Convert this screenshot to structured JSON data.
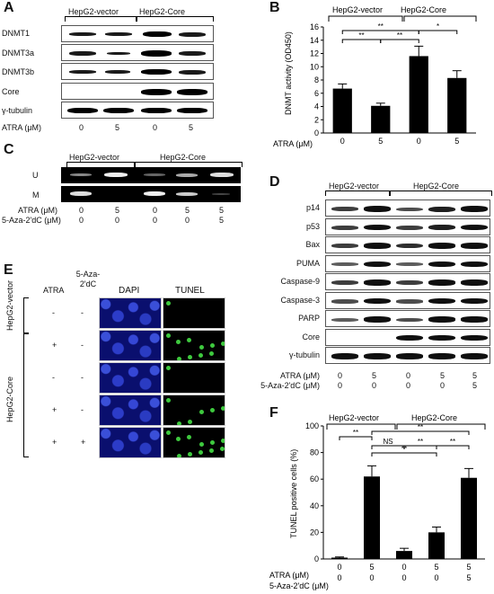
{
  "panels": {
    "A": "A",
    "B": "B",
    "C": "C",
    "D": "D",
    "E": "E",
    "F": "F"
  },
  "groups": {
    "vector": "HepG2-vector",
    "core": "HepG2-Core"
  },
  "panelA": {
    "rows": [
      "DNMT1",
      "DNMT3a",
      "DNMT3b",
      "Core",
      "γ-tubulin"
    ],
    "atra_label": "ATRA (μM)",
    "atra": [
      "0",
      "5",
      "0",
      "5"
    ]
  },
  "panelC": {
    "rows": [
      "U",
      "M"
    ],
    "atra_label": "ATRA (μM)",
    "aza_label": "5-Aza-2'dC (μM)",
    "atra": [
      "0",
      "5",
      "0",
      "5",
      "5"
    ],
    "aza": [
      "0",
      "0",
      "0",
      "0",
      "5"
    ]
  },
  "panelD": {
    "rows": [
      "p14",
      "p53",
      "Bax",
      "PUMA",
      "Caspase-9",
      "Caspase-3",
      "PARP",
      "Core",
      "γ-tubulin"
    ],
    "atra_label": "ATRA (μM)",
    "aza_label": "5-Aza-2'dC (μM)",
    "atra": [
      "0",
      "5",
      "0",
      "5",
      "5"
    ],
    "aza": [
      "0",
      "0",
      "0",
      "0",
      "5"
    ]
  },
  "panelE": {
    "col_atra": "ATRA",
    "col_aza": "5-Aza-2'dC",
    "col_dapi": "DAPI",
    "col_tunel": "TUNEL",
    "atra": [
      "-",
      "+",
      "-",
      "+",
      "+"
    ],
    "aza": [
      "-",
      "-",
      "-",
      "-",
      "+"
    ],
    "tunel_level": [
      0.05,
      0.7,
      0.1,
      0.45,
      0.75
    ]
  },
  "chart_data": [
    {
      "type": "bar",
      "panel": "B",
      "ylabel": "DNMT activity (OD450)",
      "ylim": [
        0,
        16
      ],
      "yticks": [
        "0",
        "2",
        "4",
        "6",
        "8",
        "10",
        "12",
        "14",
        "16"
      ],
      "categories": [
        "0",
        "5",
        "0",
        "5"
      ],
      "xlabel": "ATRA (μM)",
      "values": [
        6.7,
        4.1,
        11.6,
        8.3
      ],
      "errors": [
        0.7,
        0.4,
        1.5,
        1.1
      ],
      "significance": [
        "**",
        "**",
        "**",
        "*"
      ]
    },
    {
      "type": "bar",
      "panel": "F",
      "ylabel": "TUNEL positive cells (%)",
      "ylim": [
        0,
        100
      ],
      "yticks": [
        "0",
        "20",
        "40",
        "60",
        "80",
        "100"
      ],
      "categories": [
        "0",
        "5",
        "0",
        "5",
        "5"
      ],
      "xlabel": "ATRA (μM)",
      "x2label": "5-Aza-2'dC (μM)",
      "x2": [
        "0",
        "0",
        "0",
        "0",
        "5"
      ],
      "values": [
        1,
        62,
        6,
        20,
        61
      ],
      "errors": [
        0.5,
        8,
        2,
        4,
        7
      ],
      "significance": [
        "**",
        "**",
        "NS",
        "**",
        "**",
        "**"
      ]
    }
  ]
}
